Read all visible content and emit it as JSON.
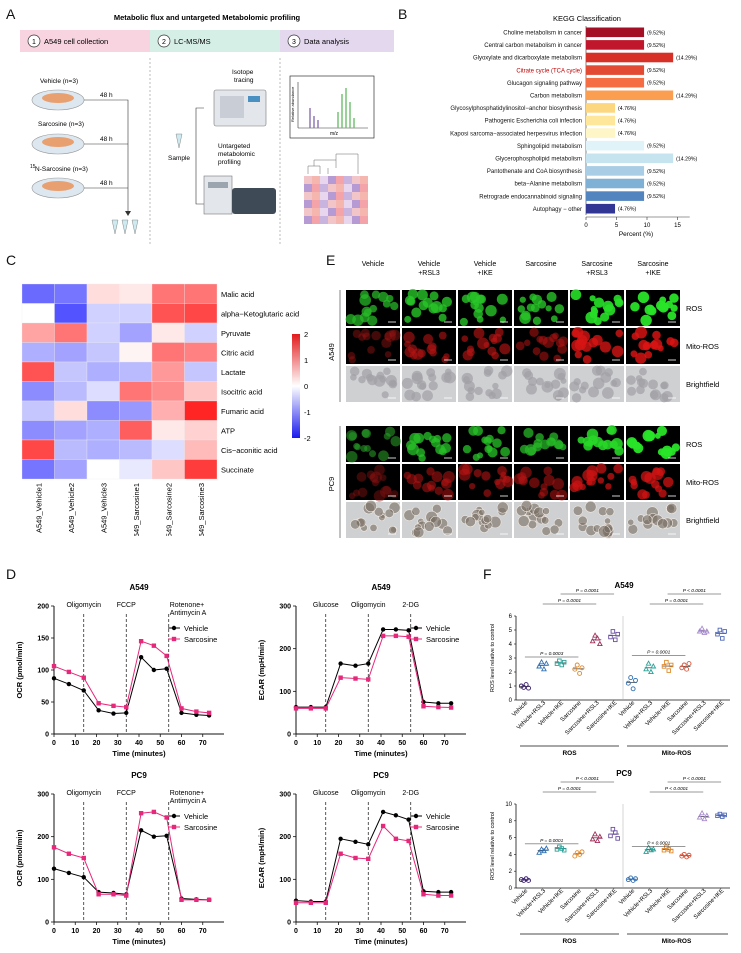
{
  "panel_labels": [
    "A",
    "B",
    "C",
    "D",
    "E",
    "F"
  ],
  "panelA": {
    "title": "Metabolic flux and untargeted Metabolomic profiling",
    "steps": [
      {
        "num": "1",
        "label": "A549 cell collection"
      },
      {
        "num": "2",
        "label": "LC-MS/MS"
      },
      {
        "num": "3",
        "label": "Data analysis"
      }
    ],
    "groups": [
      "Vehicle (n=3)",
      "Sarcosine (n=3)",
      "N-Sarcosine (n=3)"
    ],
    "isotope_superscript": "15",
    "time_label": "48 h",
    "sample_label": "Sample",
    "isotope_label": "Isotope tracing",
    "untargeted_label": "Untargeted metabolomic profiling",
    "ms_ylabel": "Relative abundance",
    "ms_xlabel": "m/z"
  },
  "colors": {
    "step1": "#f7d4df",
    "step2": "#d6efe6",
    "step3": "#e4d8ef",
    "vehicle": "#000000",
    "sarcosine": "#e6287a",
    "heat_high": "#e31a1c",
    "heat_low": "#1a1aee"
  },
  "chart_data": [
    {
      "type": "bar",
      "id": "B",
      "title": "KEGG Classification",
      "xlabel": "Percent (%)",
      "xlim": [
        0,
        17
      ],
      "xticks": [
        0,
        5,
        10,
        15
      ],
      "categories": [
        "Choline metabolism in cancer",
        "Central carbon metabolism in cancer",
        "Glyoxylate and dicarboxylate metabolism",
        "Citrate cycle (TCA cycle)",
        "Glucagon signaling pathway",
        "Carbon metabolism",
        "Glycosylphosphatidylinositol−anchor biosynthesis",
        "Pathogenic Escherichia coli infection",
        "Kaposi sarcoma−associated herpesvirus infection",
        "Sphingolipid metabolism",
        "Glycerophospholipid metabolism",
        "Pantothenate and CoA biosynthesis",
        "beta−Alanine metabolism",
        "Retrograde endocannabinoid signaling",
        "Autophagy − other"
      ],
      "values": [
        9.52,
        9.52,
        14.29,
        9.52,
        9.52,
        14.29,
        4.76,
        4.76,
        4.76,
        9.52,
        14.29,
        9.52,
        9.52,
        9.52,
        4.76
      ],
      "value_labels": [
        "(9.52%)",
        "(9.52%)",
        "(14.29%)",
        "(9.52%)",
        "(9.52%)",
        "(14.29%)",
        "(4.76%)",
        "(4.76%)",
        "(4.76%)",
        "(9.52%)",
        "(14.29%)",
        "(9.52%)",
        "(9.52%)",
        "(9.52%)",
        "(4.76%)"
      ],
      "bar_colors": [
        "#a50f26",
        "#c1172c",
        "#d73027",
        "#e34a33",
        "#f46d43",
        "#fb9e4f",
        "#fdd680",
        "#fee79a",
        "#fff6c8",
        "#e0f3f8",
        "#c6e4f0",
        "#a8cde4",
        "#7fb0d5",
        "#5284bf",
        "#313695"
      ],
      "highlight_index": 3,
      "highlight_color": "#c00000"
    },
    {
      "type": "heatmap",
      "id": "C",
      "rows": [
        "Malic acid",
        "alpha−Ketoglutaric acid",
        "Pyruvate",
        "Citric acid",
        "Lactate",
        "Isocitric acid",
        "Fumaric acid",
        "ATP",
        "Cis−aconitic acid",
        "Succinate"
      ],
      "columns": [
        "A549_Vehicle1",
        "A549_Vehicle2",
        "A549_Vehicle3",
        "A549_Sarcosine1",
        "A549_Sarcosine2",
        "A549_Sarcosine3"
      ],
      "values": [
        [
          -1.3,
          -1.2,
          0.3,
          0.2,
          1.2,
          1.2
        ],
        [
          0.0,
          -1.5,
          -0.4,
          -0.4,
          1.5,
          1.6
        ],
        [
          0.8,
          1.2,
          -0.4,
          -0.8,
          0.2,
          -0.4
        ],
        [
          -0.7,
          -0.8,
          -0.5,
          0.1,
          1.2,
          1.1
        ],
        [
          1.5,
          -0.5,
          -0.7,
          -0.6,
          0.9,
          -0.5
        ],
        [
          -1.0,
          -0.6,
          -0.3,
          1.2,
          1.0,
          0.5
        ],
        [
          -0.5,
          0.3,
          -1.0,
          -0.9,
          0.7,
          1.9
        ],
        [
          -1.0,
          -0.8,
          -0.7,
          1.4,
          0.2,
          0.4
        ],
        [
          1.6,
          -0.6,
          -0.7,
          -0.6,
          -0.3,
          0.6
        ],
        [
          -1.2,
          -0.8,
          0.0,
          -0.2,
          0.5,
          1.7
        ]
      ],
      "scale_ticks": [
        2,
        1,
        0,
        -1,
        -2
      ],
      "vmin": -2,
      "vmax": 2
    },
    {
      "type": "line",
      "id": "D1",
      "title": "A549",
      "xlabel": "Time (minutes)",
      "ylabel": "OCR (pmol/min)",
      "xlim": [
        0,
        80
      ],
      "ylim": [
        0,
        200
      ],
      "xticks": [
        0,
        10,
        20,
        30,
        40,
        50,
        60,
        70
      ],
      "yticks": [
        0,
        50,
        100,
        150,
        200
      ],
      "injections": [
        {
          "x": 14,
          "label": "Oligomycin"
        },
        {
          "x": 34,
          "label": "FCCP"
        },
        {
          "x": 54,
          "label": "Rotenone+\nAntimycin A"
        }
      ],
      "x": [
        0,
        7,
        14,
        21,
        28,
        34,
        41,
        47,
        53,
        60,
        67,
        73
      ],
      "series": [
        {
          "name": "Vehicle",
          "values": [
            87,
            78,
            68,
            37,
            32,
            33,
            120,
            100,
            102,
            33,
            30,
            29
          ]
        },
        {
          "name": "Sarcosine",
          "values": [
            106,
            97,
            88,
            48,
            44,
            42,
            145,
            138,
            122,
            40,
            35,
            33
          ]
        }
      ]
    },
    {
      "type": "line",
      "id": "D2",
      "title": "A549",
      "xlabel": "Time (minutes)",
      "ylabel": "ECAR (mpH/min)",
      "xlim": [
        0,
        80
      ],
      "ylim": [
        0,
        300
      ],
      "xticks": [
        0,
        10,
        20,
        30,
        40,
        50,
        60,
        70
      ],
      "yticks": [
        0,
        100,
        200,
        300
      ],
      "injections": [
        {
          "x": 14,
          "label": "Glucose"
        },
        {
          "x": 34,
          "label": "Oligomycin"
        },
        {
          "x": 54,
          "label": "2-DG"
        }
      ],
      "x": [
        0,
        7,
        14,
        21,
        28,
        34,
        41,
        47,
        53,
        60,
        67,
        73
      ],
      "series": [
        {
          "name": "Vehicle",
          "values": [
            63,
            63,
            63,
            165,
            160,
            165,
            245,
            245,
            243,
            75,
            72,
            72
          ]
        },
        {
          "name": "Sarcosine",
          "values": [
            60,
            60,
            60,
            132,
            130,
            128,
            230,
            230,
            228,
            65,
            63,
            62
          ]
        }
      ]
    },
    {
      "type": "line",
      "id": "D3",
      "title": "PC9",
      "xlabel": "Time (minutes)",
      "ylabel": "OCR (pmol/min)",
      "xlim": [
        0,
        80
      ],
      "ylim": [
        0,
        300
      ],
      "xticks": [
        0,
        10,
        20,
        30,
        40,
        50,
        60,
        70
      ],
      "yticks": [
        0,
        100,
        200,
        300
      ],
      "injections": [
        {
          "x": 14,
          "label": "Oligomycin"
        },
        {
          "x": 34,
          "label": "FCCP"
        },
        {
          "x": 54,
          "label": "Rotenone+\nAntimycin A"
        }
      ],
      "x": [
        0,
        7,
        14,
        21,
        28,
        34,
        41,
        47,
        53,
        60,
        67,
        73
      ],
      "series": [
        {
          "name": "Vehicle",
          "values": [
            125,
            115,
            105,
            70,
            68,
            65,
            215,
            200,
            202,
            55,
            53,
            52
          ]
        },
        {
          "name": "Sarcosine",
          "values": [
            175,
            160,
            150,
            65,
            65,
            62,
            255,
            258,
            245,
            52,
            52,
            52
          ]
        }
      ]
    },
    {
      "type": "line",
      "id": "D4",
      "title": "PC9",
      "xlabel": "Time (minutes)",
      "ylabel": "ECAR (mpH/min)",
      "xlim": [
        0,
        80
      ],
      "ylim": [
        0,
        300
      ],
      "xticks": [
        0,
        10,
        20,
        30,
        40,
        50,
        60,
        70
      ],
      "yticks": [
        0,
        100,
        200,
        300
      ],
      "injections": [
        {
          "x": 14,
          "label": "Glucose"
        },
        {
          "x": 34,
          "label": "Oligomycin"
        },
        {
          "x": 54,
          "label": "2-DG"
        }
      ],
      "x": [
        0,
        7,
        14,
        21,
        28,
        34,
        41,
        47,
        53,
        60,
        67,
        73
      ],
      "series": [
        {
          "name": "Vehicle",
          "values": [
            50,
            48,
            48,
            195,
            188,
            182,
            258,
            250,
            240,
            72,
            70,
            70
          ]
        },
        {
          "name": "Sarcosine",
          "values": [
            45,
            45,
            45,
            160,
            150,
            148,
            225,
            195,
            190,
            65,
            62,
            62
          ]
        }
      ]
    },
    {
      "type": "scatter",
      "id": "F1",
      "title": "A549",
      "ylabel": "ROS level relative to control",
      "ylim": [
        0,
        6
      ],
      "yticks": [
        0,
        1,
        2,
        3,
        4,
        5,
        6
      ],
      "categories": [
        "Vehicle",
        "Vehicle+RSL3",
        "Vehicle+IKE",
        "Sarcosine",
        "Sarcosine+RSL3",
        "Sarcosine+IKE",
        "Vehicle",
        "Vehicle+RSL3",
        "Vehicle+IKE",
        "Sarcosine",
        "Sarcosine+RSL3",
        "Sarcosine+IKE"
      ],
      "group_labels": [
        "ROS",
        "Mito-ROS"
      ],
      "point_colors": [
        "#3b1f6e",
        "#2f6fb3",
        "#2aa198",
        "#e08a2c",
        "#a0305c",
        "#6b4fa0",
        "#2f6fb3",
        "#2aa198",
        "#e08a2c",
        "#d9543a",
        "#a88bd0",
        "#4f68b8"
      ],
      "points": [
        [
          1.0,
          0.9,
          1.1,
          0.85
        ],
        [
          2.4,
          2.7,
          2.2,
          2.6
        ],
        [
          2.6,
          2.8,
          2.5,
          2.7
        ],
        [
          2.2,
          2.5,
          1.9,
          2.3
        ],
        [
          4.2,
          4.6,
          4.4,
          4.0
        ],
        [
          4.5,
          4.9,
          4.3,
          4.7
        ],
        [
          1.2,
          1.6,
          0.8,
          1.4
        ],
        [
          2.2,
          2.6,
          2.0,
          2.4
        ],
        [
          2.4,
          2.7,
          2.1,
          2.5
        ],
        [
          2.3,
          2.5,
          2.2,
          2.6
        ],
        [
          4.9,
          5.1,
          4.8,
          4.9
        ],
        [
          4.7,
          5.0,
          4.4,
          4.9
        ]
      ],
      "comparisons": [
        {
          "from": 0,
          "to": 3,
          "label": "P = 0.0003"
        },
        {
          "from": 1,
          "to": 4,
          "label": "P = 0.0001"
        },
        {
          "from": 2,
          "to": 5,
          "label": "P = 0.0001"
        },
        {
          "from": 6,
          "to": 9,
          "label": "P = 0.0001"
        },
        {
          "from": 7,
          "to": 10,
          "label": "P = 0.0001"
        },
        {
          "from": 8,
          "to": 11,
          "label": "P < 0.0001"
        }
      ]
    },
    {
      "type": "scatter",
      "id": "F2",
      "title": "PC9",
      "ylabel": "ROS level relative to control",
      "ylim": [
        0,
        10
      ],
      "yticks": [
        0,
        2,
        4,
        6,
        8,
        10
      ],
      "categories": [
        "Vehicle",
        "Vehicle+RSL3",
        "Vehicle+IKE",
        "Sarcosine",
        "Sarcosine+RSL3",
        "Sarcosine+IKE",
        "Vehicle",
        "Vehicle+RSL3",
        "Vehicle+IKE",
        "Sarcosine",
        "Sarcosine+RSL3",
        "Sarcosine+IKE"
      ],
      "group_labels": [
        "ROS",
        "Mito-ROS"
      ],
      "point_colors": [
        "#3b1f6e",
        "#2f6fb3",
        "#2aa198",
        "#e08a2c",
        "#a0305c",
        "#6b4fa0",
        "#2f6fb3",
        "#2aa198",
        "#e08a2c",
        "#d9543a",
        "#a88bd0",
        "#4f68b8"
      ],
      "points": [
        [
          1.0,
          0.9,
          1.1,
          0.9
        ],
        [
          4.2,
          4.6,
          4.4,
          4.7
        ],
        [
          4.6,
          4.9,
          4.7,
          4.5
        ],
        [
          3.8,
          4.2,
          4.0,
          4.3
        ],
        [
          5.8,
          6.4,
          5.6,
          6.1
        ],
        [
          6.2,
          7.0,
          6.6,
          5.9
        ],
        [
          1.0,
          1.2,
          0.9,
          1.1
        ],
        [
          4.3,
          4.8,
          4.5,
          4.6
        ],
        [
          4.5,
          4.9,
          4.6,
          4.4
        ],
        [
          3.8,
          4.0,
          3.7,
          3.9
        ],
        [
          8.4,
          8.9,
          8.2,
          8.6
        ],
        [
          8.6,
          8.8,
          8.5,
          8.7
        ]
      ],
      "comparisons": [
        {
          "from": 0,
          "to": 3,
          "label": "P = 0.0001"
        },
        {
          "from": 1,
          "to": 4,
          "label": "P = 0.0001"
        },
        {
          "from": 2,
          "to": 5,
          "label": "P < 0.0001"
        },
        {
          "from": 6,
          "to": 9,
          "label": "P < 0.0001"
        },
        {
          "from": 7,
          "to": 10,
          "label": "P < 0.0001"
        },
        {
          "from": 8,
          "to": 11,
          "label": "P < 0.0001"
        }
      ]
    }
  ],
  "panelE": {
    "columns": [
      "Vehicle",
      "Vehicle\n+RSL3",
      "Vehicle\n+IKE",
      "Sarcosine",
      "Sarcosine\n+RSL3",
      "Sarcosine\n+IKE"
    ],
    "rows": [
      "ROS",
      "Mito-ROS",
      "Brightfield"
    ],
    "cell_lines": [
      "A549",
      "PC9"
    ],
    "ros_intensity_A549": [
      0.55,
      0.65,
      0.65,
      0.65,
      0.85,
      0.9
    ],
    "mito_intensity_A549": [
      0.25,
      0.5,
      0.55,
      0.45,
      0.8,
      0.85
    ],
    "ros_intensity_PC9": [
      0.3,
      0.6,
      0.6,
      0.55,
      0.8,
      0.9
    ],
    "mito_intensity_PC9": [
      0.2,
      0.45,
      0.5,
      0.45,
      0.7,
      0.75
    ]
  }
}
